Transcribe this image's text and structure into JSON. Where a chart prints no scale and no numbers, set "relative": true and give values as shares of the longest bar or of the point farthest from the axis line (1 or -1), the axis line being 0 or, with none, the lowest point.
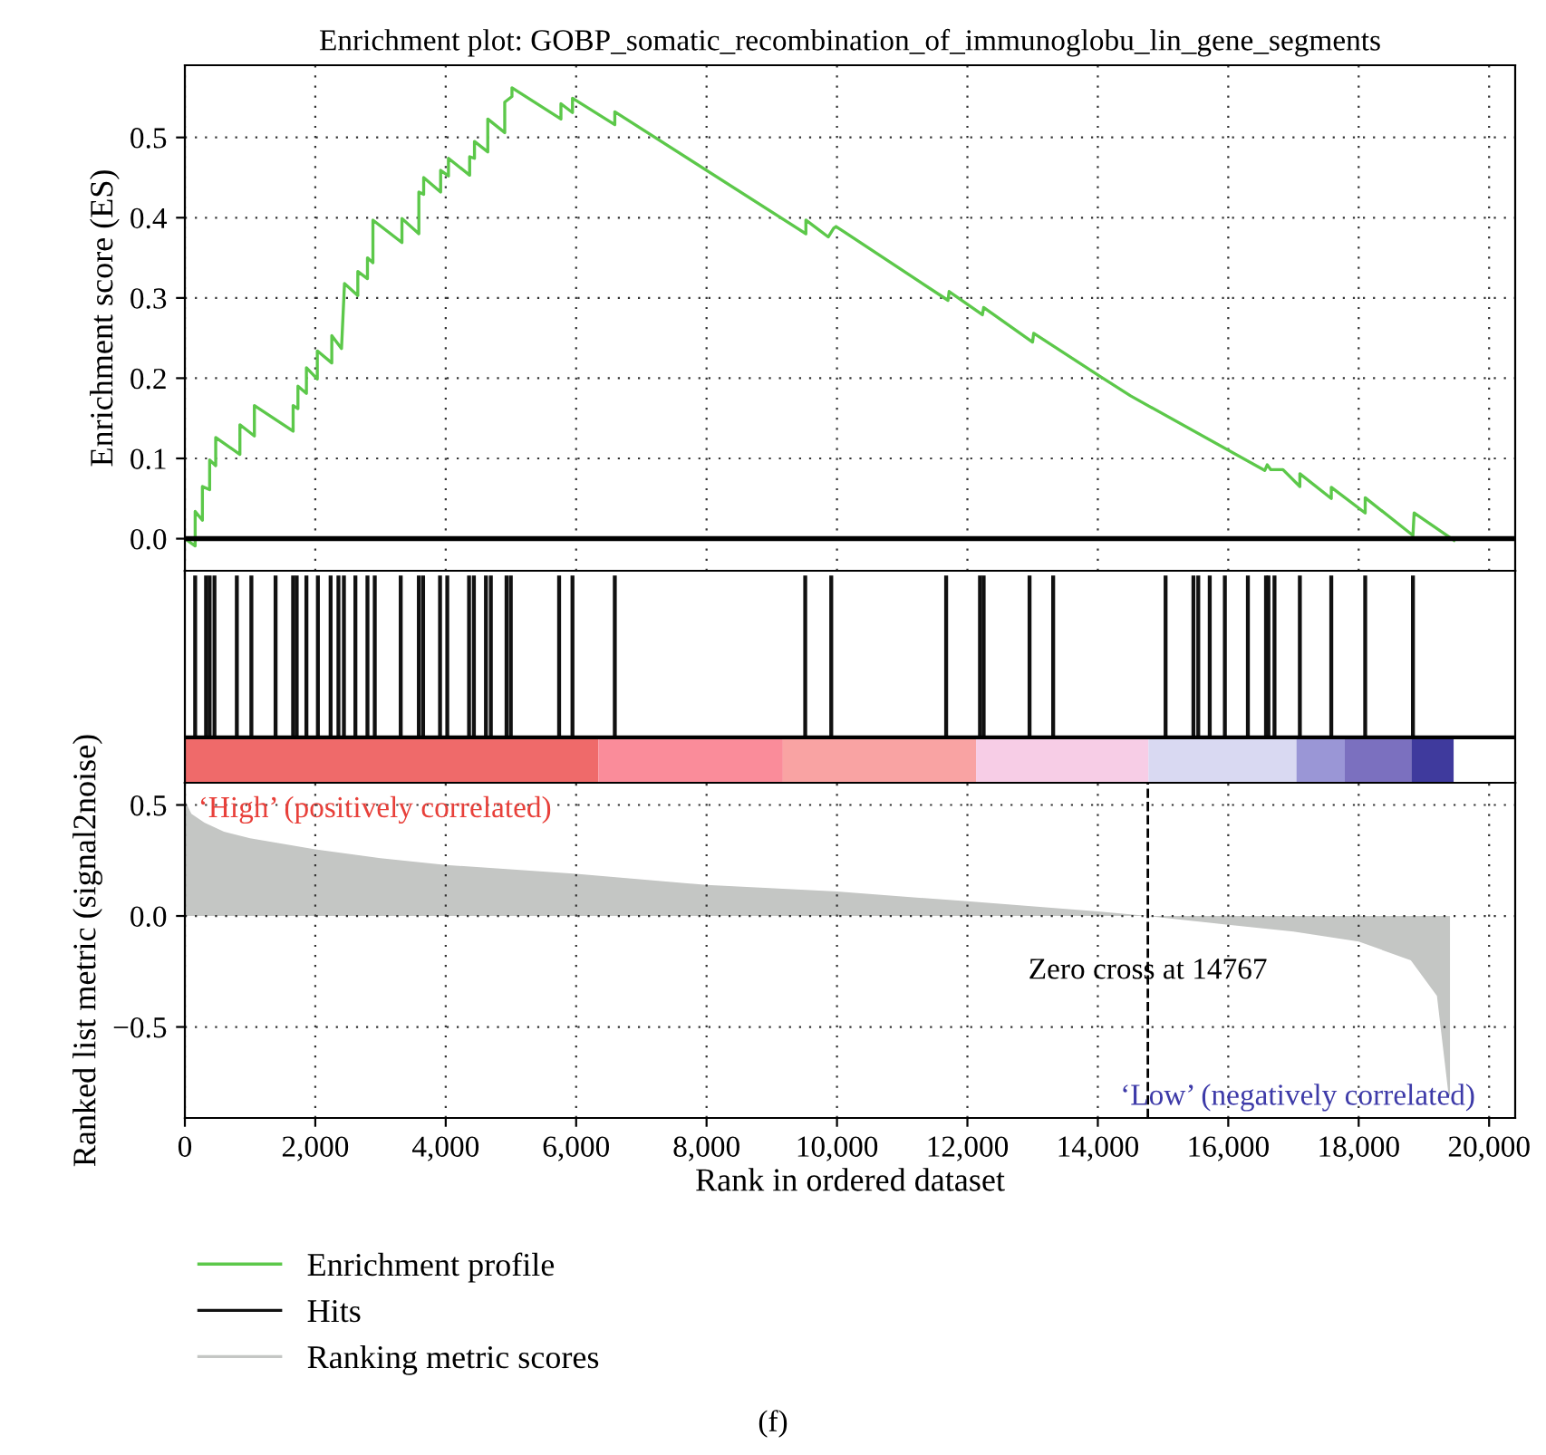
{
  "chart_data": [
    {
      "type": "line",
      "title": "Enrichment plot: GOBP_somatic_recombination_of_immunoglobu_lin_gene_segments",
      "ylabel": "Enrichment score (ES)",
      "series": [
        {
          "name": "Enrichment profile",
          "color": "#5cc84a",
          "x": [
            0,
            158,
            158,
            269,
            269,
            380,
            380,
            473,
            473,
            844,
            844,
            1066,
            1066,
            1660,
            1660,
            1734,
            1734,
            1864,
            1864,
            2031,
            2031,
            2253,
            2253,
            2402,
            2448,
            2652,
            2652,
            2800,
            2800,
            2884,
            2884,
            3329,
            3329,
            3588,
            3588,
            3662,
            3662,
            3922,
            3922,
            4042,
            4042,
            4367,
            4367,
            4441,
            4441,
            4645,
            4645,
            4905,
            4905,
            5016,
            5016,
            5767,
            5767,
            5944,
            5944,
            6593,
            6593,
            9523,
            9523,
            9866,
            9950,
            9986,
            11702,
            11720,
            12230,
            12249,
            12999,
            13017,
            14038,
            14501,
            16560,
            16597,
            16653,
            16839,
            17098,
            17098,
            17580,
            17580,
            18100,
            18100,
            18832,
            18850,
            19463
          ],
          "values": [
            0,
            -0.009,
            0.034,
            0.023,
            0.065,
            0.061,
            0.098,
            0.091,
            0.126,
            0.105,
            0.142,
            0.128,
            0.166,
            0.134,
            0.166,
            0.162,
            0.19,
            0.181,
            0.213,
            0.199,
            0.234,
            0.219,
            0.253,
            0.237,
            0.318,
            0.303,
            0.333,
            0.324,
            0.35,
            0.344,
            0.397,
            0.369,
            0.399,
            0.38,
            0.432,
            0.429,
            0.45,
            0.432,
            0.459,
            0.452,
            0.474,
            0.453,
            0.476,
            0.474,
            0.495,
            0.482,
            0.523,
            0.506,
            0.544,
            0.551,
            0.562,
            0.523,
            0.542,
            0.531,
            0.549,
            0.516,
            0.532,
            0.38,
            0.397,
            0.376,
            0.387,
            0.389,
            0.297,
            0.308,
            0.279,
            0.288,
            0.245,
            0.256,
            0.202,
            0.178,
            0.085,
            0.092,
            0.086,
            0.086,
            0.065,
            0.081,
            0.05,
            0.064,
            0.032,
            0.051,
            0.004,
            0.032,
            -0.002
          ]
        }
      ],
      "xlim": [
        0,
        20400
      ],
      "xticks": [
        {
          "value": 0,
          "label": null
        },
        {
          "value": 2000,
          "label": null
        },
        {
          "value": 4000,
          "label": null
        },
        {
          "value": 6000,
          "label": null
        },
        {
          "value": 8000,
          "label": null
        },
        {
          "value": 10000,
          "label": null
        },
        {
          "value": 12000,
          "label": null
        },
        {
          "value": 14000,
          "label": null
        },
        {
          "value": 16000,
          "label": null
        },
        {
          "value": 18000,
          "label": null
        },
        {
          "value": 20000,
          "label": null
        }
      ],
      "ylim": [
        -0.04,
        0.59
      ],
      "yticks": [
        {
          "value": 0,
          "label": "0.0"
        },
        {
          "value": 0.1,
          "label": "0.1"
        },
        {
          "value": 0.2,
          "label": "0.2"
        },
        {
          "value": 0.3,
          "label": "0.3"
        },
        {
          "value": 0.4,
          "label": "0.4"
        },
        {
          "value": 0.5,
          "label": "0.5"
        }
      ],
      "ref_lines": [
        {
          "axis": "y",
          "value": 0,
          "color": "#000000"
        }
      ],
      "grid": true,
      "tick_labels": "y",
      "line_style": "solid"
    },
    {
      "type": "bar",
      "relative": true,
      "tick_labels": false,
      "xlim": [
        0,
        20400
      ],
      "series": [
        {
          "name": "Hits",
          "color": "#111111",
          "x": [
            158,
            325,
            380,
            454,
            797,
            1020,
            1391,
            1660,
            1715,
            1864,
            2040,
            2235,
            2355,
            2439,
            2615,
            2800,
            2912,
            3310,
            3588,
            3653,
            3913,
            4024,
            4358,
            4432,
            4617,
            4692,
            4933,
            4998,
            5739,
            5944,
            6593,
            9513,
            9912,
            11674,
            12193,
            12249,
            12953,
            13315,
            15039,
            15466,
            15540,
            15716,
            15948,
            16301,
            16579,
            16616,
            16709,
            17098,
            17580,
            18100,
            18832
          ],
          "values": [
            1,
            1,
            1,
            1,
            1,
            1,
            1,
            1,
            1,
            1,
            1,
            1,
            1,
            1,
            1,
            1,
            1,
            1,
            1,
            1,
            1,
            1,
            1,
            1,
            1,
            1,
            1,
            1,
            1,
            1,
            1,
            1,
            1,
            1,
            1,
            1,
            1,
            1,
            1,
            1,
            1,
            1,
            1,
            1,
            1,
            1,
            1,
            1,
            1,
            1,
            1
          ]
        }
      ]
    },
    {
      "type": "area",
      "xlabel": "Rank in ordered dataset",
      "ylabel": "Ranked list metric (signal2noise)",
      "series": [
        {
          "name": "Ranking metric scores",
          "color": "#c4c6c4",
          "x": [
            0,
            100,
            300,
            600,
            1000,
            2000,
            3000,
            4000,
            6000,
            8000,
            10000,
            12000,
            14000,
            14767,
            16000,
            17000,
            18000,
            18800,
            19200,
            19380,
            19400
          ],
          "values": [
            0.52,
            0.46,
            0.42,
            0.38,
            0.35,
            0.3,
            0.26,
            0.23,
            0.19,
            0.14,
            0.11,
            0.066,
            0.02,
            0,
            -0.04,
            -0.07,
            -0.115,
            -0.2,
            -0.36,
            -0.81,
            -0.81
          ]
        }
      ],
      "xlim": [
        0,
        20400
      ],
      "xticks": [
        0,
        {
          "value": 2000,
          "label": "2,000"
        },
        {
          "value": 4000,
          "label": "4,000"
        },
        {
          "value": 6000,
          "label": "6,000"
        },
        {
          "value": 8000,
          "label": "8,000"
        },
        {
          "value": 10000,
          "label": "10,000"
        },
        {
          "value": 12000,
          "label": "12,000"
        },
        {
          "value": 14000,
          "label": "14,000"
        },
        {
          "value": 16000,
          "label": "16,000"
        },
        {
          "value": 18000,
          "label": "18,000"
        },
        {
          "value": 20000,
          "label": "20,000"
        }
      ],
      "ylim": [
        -0.91,
        0.6
      ],
      "yticks": [
        {
          "value": -0.5,
          "label": "−0.5"
        },
        {
          "value": 0,
          "label": "0.0"
        },
        {
          "value": 0.5,
          "label": "0.5"
        }
      ],
      "ref_lines": [
        {
          "axis": "x",
          "value": 14767,
          "label": "Zero cross at 14767",
          "color": "#000000",
          "line_style": "dashed"
        }
      ],
      "annotations": [
        "‘High’ (positively correlated)",
        "‘Low’ (negatively correlated)",
        "(f)"
      ],
      "grid": true,
      "legend": "bottom"
    }
  ]
}
